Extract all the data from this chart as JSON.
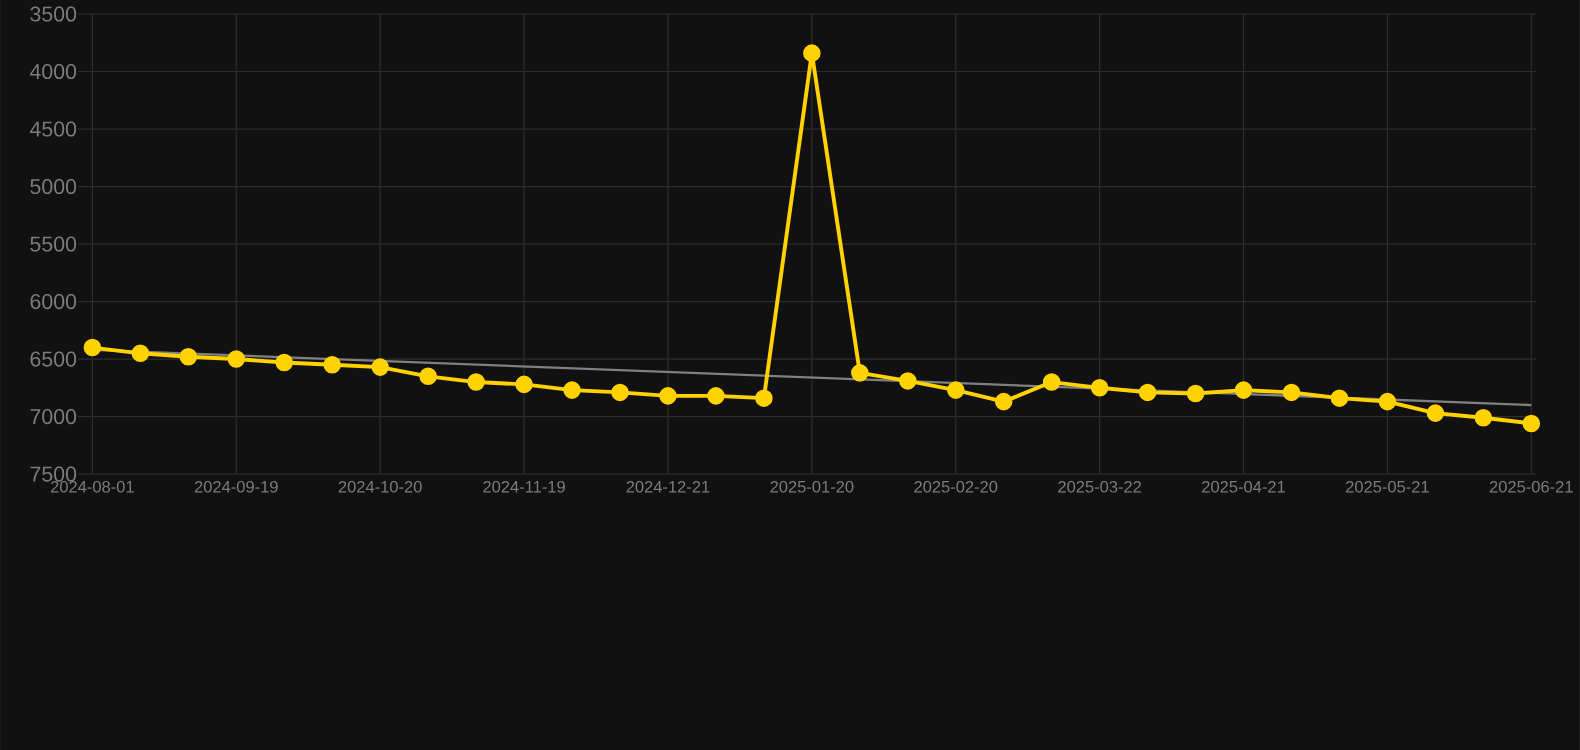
{
  "chart_data": {
    "type": "line",
    "categories": [
      "2024-08-01",
      null,
      null,
      "2024-09-19",
      null,
      null,
      "2024-10-20",
      null,
      null,
      "2024-11-19",
      null,
      null,
      "2024-12-21",
      null,
      null,
      "2025-01-20",
      null,
      null,
      "2025-02-20",
      null,
      null,
      "2025-03-22",
      null,
      null,
      "2025-04-21",
      null,
      null,
      "2025-05-21",
      null,
      null,
      "2025-06-21"
    ],
    "series": [
      {
        "color": "#ffd200",
        "marker": "circle",
        "values": [
          6400,
          6450,
          6480,
          6500,
          6530,
          6550,
          6570,
          6650,
          6700,
          6720,
          6770,
          6790,
          6820,
          6820,
          6840,
          3840,
          6620,
          6690,
          6770,
          6870,
          6700,
          6750,
          6790,
          6800,
          6770,
          6790,
          6840,
          6870,
          6970,
          7010,
          7060
        ]
      },
      {
        "color": "#808080",
        "marker": "none",
        "values": [
          6420,
          null,
          null,
          null,
          null,
          null,
          null,
          null,
          null,
          null,
          null,
          null,
          null,
          null,
          null,
          null,
          null,
          null,
          null,
          null,
          null,
          null,
          null,
          null,
          null,
          null,
          null,
          null,
          null,
          null,
          6900
        ]
      }
    ],
    "ylim": [
      7500,
      3500
    ],
    "yticks": [
      3500,
      4000,
      4500,
      5000,
      5500,
      6000,
      6500,
      7000,
      7500
    ],
    "grid": true,
    "legend": false
  }
}
